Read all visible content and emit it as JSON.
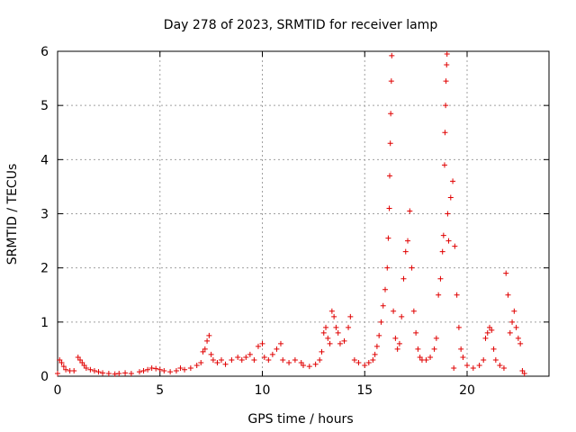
{
  "chart_data": {
    "type": "scatter",
    "title": "Day 278 of 2023, SRMTID for receiver lamp",
    "xlabel": "GPS time / hours",
    "ylabel": "SRMTID / TECUs",
    "xlim": [
      0,
      24
    ],
    "ylim": [
      0,
      6
    ],
    "xticks": [
      0,
      5,
      10,
      15,
      20
    ],
    "yticks": [
      0,
      1,
      2,
      3,
      4,
      5,
      6
    ],
    "grid": true,
    "marker": "plus",
    "color": "#e00000",
    "series": [
      {
        "name": "SRMTID",
        "points": [
          [
            0.0,
            0.05
          ],
          [
            0.1,
            0.3
          ],
          [
            0.2,
            0.25
          ],
          [
            0.3,
            0.18
          ],
          [
            0.4,
            0.12
          ],
          [
            0.6,
            0.1
          ],
          [
            0.8,
            0.1
          ],
          [
            1.0,
            0.35
          ],
          [
            1.1,
            0.3
          ],
          [
            1.2,
            0.25
          ],
          [
            1.3,
            0.2
          ],
          [
            1.4,
            0.15
          ],
          [
            1.6,
            0.12
          ],
          [
            1.8,
            0.1
          ],
          [
            2.0,
            0.08
          ],
          [
            2.2,
            0.06
          ],
          [
            2.5,
            0.05
          ],
          [
            2.8,
            0.04
          ],
          [
            3.0,
            0.05
          ],
          [
            3.3,
            0.06
          ],
          [
            3.6,
            0.05
          ],
          [
            4.0,
            0.08
          ],
          [
            4.2,
            0.1
          ],
          [
            4.4,
            0.12
          ],
          [
            4.6,
            0.15
          ],
          [
            4.8,
            0.14
          ],
          [
            5.0,
            0.12
          ],
          [
            5.2,
            0.1
          ],
          [
            5.5,
            0.08
          ],
          [
            5.8,
            0.1
          ],
          [
            6.0,
            0.15
          ],
          [
            6.2,
            0.12
          ],
          [
            6.5,
            0.15
          ],
          [
            6.8,
            0.2
          ],
          [
            7.0,
            0.25
          ],
          [
            7.1,
            0.45
          ],
          [
            7.2,
            0.5
          ],
          [
            7.3,
            0.65
          ],
          [
            7.4,
            0.75
          ],
          [
            7.5,
            0.4
          ],
          [
            7.6,
            0.3
          ],
          [
            7.8,
            0.25
          ],
          [
            8.0,
            0.3
          ],
          [
            8.2,
            0.22
          ],
          [
            8.5,
            0.3
          ],
          [
            8.8,
            0.35
          ],
          [
            9.0,
            0.3
          ],
          [
            9.2,
            0.35
          ],
          [
            9.4,
            0.4
          ],
          [
            9.6,
            0.3
          ],
          [
            9.8,
            0.55
          ],
          [
            10.0,
            0.6
          ],
          [
            10.1,
            0.35
          ],
          [
            10.3,
            0.3
          ],
          [
            10.5,
            0.4
          ],
          [
            10.7,
            0.5
          ],
          [
            10.9,
            0.6
          ],
          [
            11.0,
            0.3
          ],
          [
            11.3,
            0.25
          ],
          [
            11.6,
            0.3
          ],
          [
            11.9,
            0.25
          ],
          [
            12.0,
            0.2
          ],
          [
            12.3,
            0.18
          ],
          [
            12.6,
            0.22
          ],
          [
            12.8,
            0.3
          ],
          [
            12.9,
            0.45
          ],
          [
            13.0,
            0.8
          ],
          [
            13.1,
            0.9
          ],
          [
            13.2,
            0.7
          ],
          [
            13.3,
            0.6
          ],
          [
            13.4,
            1.2
          ],
          [
            13.5,
            1.1
          ],
          [
            13.6,
            0.9
          ],
          [
            13.7,
            0.8
          ],
          [
            13.8,
            0.6
          ],
          [
            14.0,
            0.65
          ],
          [
            14.2,
            0.9
          ],
          [
            14.3,
            1.1
          ],
          [
            14.5,
            0.3
          ],
          [
            14.7,
            0.25
          ],
          [
            15.0,
            0.2
          ],
          [
            15.2,
            0.25
          ],
          [
            15.4,
            0.3
          ],
          [
            15.5,
            0.4
          ],
          [
            15.6,
            0.55
          ],
          [
            15.7,
            0.75
          ],
          [
            15.8,
            1.0
          ],
          [
            15.9,
            1.3
          ],
          [
            16.0,
            1.6
          ],
          [
            16.1,
            2.0
          ],
          [
            16.15,
            2.55
          ],
          [
            16.2,
            3.1
          ],
          [
            16.22,
            3.7
          ],
          [
            16.25,
            4.3
          ],
          [
            16.27,
            4.85
          ],
          [
            16.3,
            5.45
          ],
          [
            16.32,
            5.92
          ],
          [
            16.4,
            1.2
          ],
          [
            16.5,
            0.7
          ],
          [
            16.6,
            0.5
          ],
          [
            16.7,
            0.6
          ],
          [
            16.8,
            1.1
          ],
          [
            16.9,
            1.8
          ],
          [
            17.0,
            2.3
          ],
          [
            17.1,
            2.5
          ],
          [
            17.2,
            3.05
          ],
          [
            17.3,
            2.0
          ],
          [
            17.4,
            1.2
          ],
          [
            17.5,
            0.8
          ],
          [
            17.6,
            0.5
          ],
          [
            17.7,
            0.35
          ],
          [
            17.8,
            0.3
          ],
          [
            18.0,
            0.3
          ],
          [
            18.2,
            0.35
          ],
          [
            18.4,
            0.5
          ],
          [
            18.5,
            0.7
          ],
          [
            18.6,
            1.5
          ],
          [
            18.7,
            1.8
          ],
          [
            18.8,
            2.3
          ],
          [
            18.85,
            2.6
          ],
          [
            18.9,
            3.9
          ],
          [
            18.92,
            4.5
          ],
          [
            18.95,
            5.0
          ],
          [
            18.97,
            5.45
          ],
          [
            19.0,
            5.75
          ],
          [
            19.02,
            5.95
          ],
          [
            19.05,
            3.0
          ],
          [
            19.1,
            2.5
          ],
          [
            19.2,
            3.3
          ],
          [
            19.3,
            3.6
          ],
          [
            19.35,
            0.15
          ],
          [
            19.4,
            2.4
          ],
          [
            19.5,
            1.5
          ],
          [
            19.6,
            0.9
          ],
          [
            19.7,
            0.5
          ],
          [
            19.8,
            0.35
          ],
          [
            20.0,
            0.2
          ],
          [
            20.3,
            0.15
          ],
          [
            20.6,
            0.2
          ],
          [
            20.8,
            0.3
          ],
          [
            20.9,
            0.7
          ],
          [
            21.0,
            0.8
          ],
          [
            21.1,
            0.9
          ],
          [
            21.2,
            0.85
          ],
          [
            21.3,
            0.5
          ],
          [
            21.4,
            0.3
          ],
          [
            21.6,
            0.2
          ],
          [
            21.8,
            0.15
          ],
          [
            21.9,
            1.9
          ],
          [
            22.0,
            1.5
          ],
          [
            22.1,
            0.8
          ],
          [
            22.2,
            1.0
          ],
          [
            22.3,
            1.2
          ],
          [
            22.4,
            0.9
          ],
          [
            22.5,
            0.7
          ],
          [
            22.6,
            0.6
          ],
          [
            22.7,
            0.1
          ],
          [
            22.8,
            0.05
          ]
        ]
      }
    ]
  }
}
